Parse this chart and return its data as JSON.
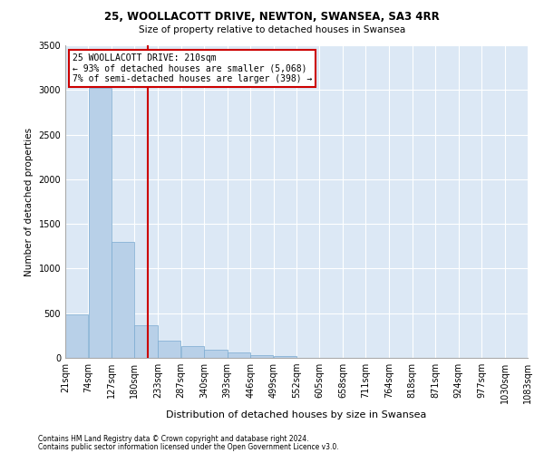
{
  "title1": "25, WOOLLACOTT DRIVE, NEWTON, SWANSEA, SA3 4RR",
  "title2": "Size of property relative to detached houses in Swansea",
  "xlabel": "Distribution of detached houses by size in Swansea",
  "ylabel": "Number of detached properties",
  "footnote1": "Contains HM Land Registry data © Crown copyright and database right 2024.",
  "footnote2": "Contains public sector information licensed under the Open Government Licence v3.0.",
  "annotation_line1": "25 WOOLLACOTT DRIVE: 210sqm",
  "annotation_line2": "← 93% of detached houses are smaller (5,068)",
  "annotation_line3": "7% of semi-detached houses are larger (398) →",
  "property_size": 210,
  "bar_color": "#b8d0e8",
  "bar_edge_color": "#7aaad0",
  "vline_color": "#cc0000",
  "annotation_box_edge": "#cc0000",
  "background_color": "#dce8f5",
  "bins": [
    21,
    74,
    127,
    180,
    233,
    287,
    340,
    393,
    446,
    499,
    552,
    605,
    658,
    711,
    764,
    818,
    871,
    924,
    977,
    1030,
    1083
  ],
  "bin_labels": [
    "21sqm",
    "74sqm",
    "127sqm",
    "180sqm",
    "233sqm",
    "287sqm",
    "340sqm",
    "393sqm",
    "446sqm",
    "499sqm",
    "552sqm",
    "605sqm",
    "658sqm",
    "711sqm",
    "764sqm",
    "818sqm",
    "871sqm",
    "924sqm",
    "977sqm",
    "1030sqm",
    "1083sqm"
  ],
  "values": [
    490,
    3020,
    1300,
    370,
    195,
    130,
    90,
    60,
    35,
    20,
    0,
    0,
    0,
    0,
    0,
    0,
    0,
    0,
    0,
    0
  ],
  "ylim": [
    0,
    3500
  ],
  "yticks": [
    0,
    500,
    1000,
    1500,
    2000,
    2500,
    3000,
    3500
  ]
}
